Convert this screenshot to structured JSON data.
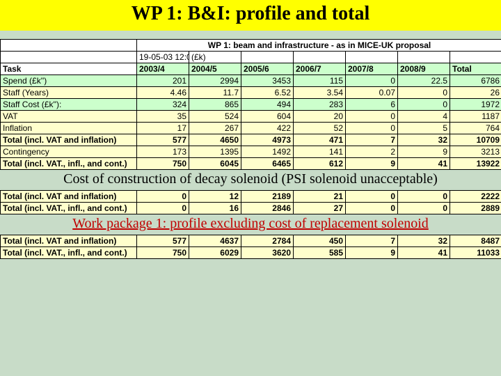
{
  "title": "WP 1: B&I: profile and total",
  "subheader": "WP 1: beam and infrastructure - as in MICE-UK proposal",
  "timestamp": "19-05-03 12:09",
  "currency_note": "(£k)",
  "columns": [
    "Task",
    "2003/4",
    "2004/5",
    "2005/6",
    "2006/7",
    "2007/8",
    "2008/9",
    "Total"
  ],
  "rows": [
    {
      "label": "Spend (£k'')",
      "vals": [
        "201",
        "2994",
        "3453",
        "115",
        "0",
        "22.5",
        "6786"
      ],
      "style": "green"
    },
    {
      "label": "Staff (Years)",
      "vals": [
        "4.46",
        "11.7",
        "6.52",
        "3.54",
        "0.07",
        "0",
        "26"
      ],
      "style": "plain"
    },
    {
      "label": "Staff Cost (£k''):",
      "vals": [
        "324",
        "865",
        "494",
        "283",
        "6",
        "0",
        "1972"
      ],
      "style": "green"
    },
    {
      "label": "VAT",
      "vals": [
        "35",
        "524",
        "604",
        "20",
        "0",
        "4",
        "1187"
      ],
      "style": "plain"
    },
    {
      "label": "Inflation",
      "vals": [
        "17",
        "267",
        "422",
        "52",
        "0",
        "5",
        "764"
      ],
      "style": "plain"
    },
    {
      "label": "Total (incl. VAT and inflation)",
      "vals": [
        "577",
        "4650",
        "4973",
        "471",
        "7",
        "32",
        "10709"
      ],
      "style": "bold"
    },
    {
      "label": "Contingency",
      "vals": [
        "173",
        "1395",
        "1492",
        "141",
        "2",
        "9",
        "3213"
      ],
      "style": "plain"
    },
    {
      "label": "Total (incl. VAT., infl., and cont.)",
      "vals": [
        "750",
        "6045",
        "6465",
        "612",
        "9",
        "41",
        "13922"
      ],
      "style": "bold"
    }
  ],
  "section2_title": "Cost of construction of decay solenoid (PSI solenoid unacceptable)",
  "rows2": [
    {
      "label": "Total (incl. VAT and inflation)",
      "vals": [
        "0",
        "12",
        "2189",
        "21",
        "0",
        "0",
        "2222"
      ],
      "style": "bold"
    },
    {
      "label": "Total (incl. VAT., infl., and cont.)",
      "vals": [
        "0",
        "16",
        "2846",
        "27",
        "0",
        "0",
        "2889"
      ],
      "style": "bold"
    }
  ],
  "section3_title": "Work package 1: profile excluding cost of replacement solenoid",
  "rows3": [
    {
      "label": "Total (incl. VAT and inflation)",
      "vals": [
        "577",
        "4637",
        "2784",
        "450",
        "7",
        "32",
        "8487"
      ],
      "style": "bold"
    },
    {
      "label": "Total (incl. VAT., infl., and cont.)",
      "vals": [
        "750",
        "6029",
        "3620",
        "585",
        "9",
        "41",
        "11033"
      ],
      "style": "bold"
    }
  ],
  "colors": {
    "title_bg": "#ffff00",
    "page_bg": "#c8dcc8",
    "cell_default": "#ffffcc",
    "cell_green": "#ccffcc",
    "cell_white": "#ffffff",
    "break_red": "#c00000"
  }
}
